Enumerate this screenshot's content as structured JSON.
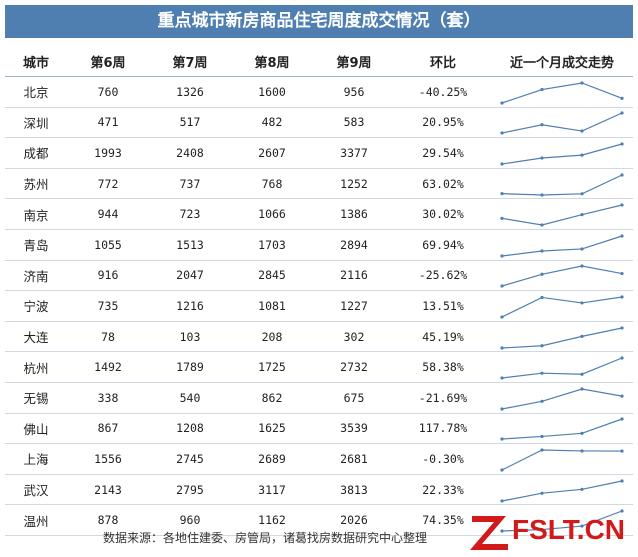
{
  "title": "重点城市新房商品住宅周度成交情况（套）",
  "footer": "数据来源：各地住建委、房管局，诸葛找房数据研究中心整理",
  "logo_text": "FSLT.CN",
  "colors": {
    "header_bg": "#4f7fb0",
    "sparkline": "#4f7fb0",
    "logo": "#d11a1a"
  },
  "chart_data": {
    "type": "table",
    "columns": [
      "城市",
      "第6周",
      "第7周",
      "第8周",
      "第9周",
      "环比",
      "近一个月成交走势"
    ],
    "rows": [
      {
        "city": "北京",
        "w6": "760",
        "w7": "1326",
        "w8": "1600",
        "w9": "956",
        "change": "-40.25%"
      },
      {
        "city": "深圳",
        "w6": "471",
        "w7": "517",
        "w8": "482",
        "w9": "583",
        "change": "20.95%"
      },
      {
        "city": "成都",
        "w6": "1993",
        "w7": "2408",
        "w8": "2607",
        "w9": "3377",
        "change": "29.54%"
      },
      {
        "city": "苏州",
        "w6": "772",
        "w7": "737",
        "w8": "768",
        "w9": "1252",
        "change": "63.02%"
      },
      {
        "city": "南京",
        "w6": "944",
        "w7": "723",
        "w8": "1066",
        "w9": "1386",
        "change": "30.02%"
      },
      {
        "city": "青岛",
        "w6": "1055",
        "w7": "1513",
        "w8": "1703",
        "w9": "2894",
        "change": "69.94%"
      },
      {
        "city": "济南",
        "w6": "916",
        "w7": "2047",
        "w8": "2845",
        "w9": "2116",
        "change": "-25.62%"
      },
      {
        "city": "宁波",
        "w6": "735",
        "w7": "1216",
        "w8": "1081",
        "w9": "1227",
        "change": "13.51%"
      },
      {
        "city": "大连",
        "w6": "78",
        "w7": "103",
        "w8": "208",
        "w9": "302",
        "change": "45.19%"
      },
      {
        "city": "杭州",
        "w6": "1492",
        "w7": "1789",
        "w8": "1725",
        "w9": "2732",
        "change": "58.38%"
      },
      {
        "city": "无锡",
        "w6": "338",
        "w7": "540",
        "w8": "862",
        "w9": "675",
        "change": "-21.69%"
      },
      {
        "city": "佛山",
        "w6": "867",
        "w7": "1208",
        "w8": "1625",
        "w9": "3539",
        "change": "117.78%"
      },
      {
        "city": "上海",
        "w6": "1556",
        "w7": "2745",
        "w8": "2689",
        "w9": "2681",
        "change": "-0.30%"
      },
      {
        "city": "武汉",
        "w6": "2143",
        "w7": "2795",
        "w8": "3117",
        "w9": "3813",
        "change": "22.33%"
      },
      {
        "city": "温州",
        "w6": "878",
        "w7": "960",
        "w8": "1162",
        "w9": "2026",
        "change": "74.35%"
      }
    ]
  }
}
